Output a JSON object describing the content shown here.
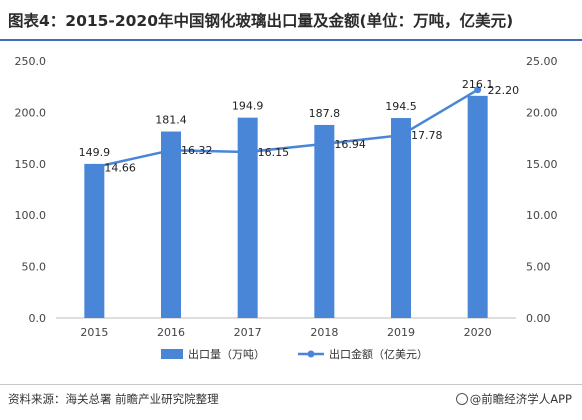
{
  "title": "图表4：2015-2020年中国钢化玻璃出口量及金额(单位：万吨，亿美元)",
  "source": "资料来源：海关总署 前瞻产业研究院整理",
  "brand": "@前瞻经济学人APP",
  "colors": {
    "bar": "#4a86d8",
    "line": "#4a86d8",
    "title_rule": "#3b6fb7"
  },
  "chart_data": {
    "type": "bar",
    "categories": [
      "2015",
      "2016",
      "2017",
      "2018",
      "2019",
      "2020"
    ],
    "series": [
      {
        "name": "出口量（万吨）",
        "type": "bar",
        "axis": "left",
        "values": [
          149.9,
          181.4,
          194.9,
          187.8,
          194.5,
          216.1
        ],
        "labels": [
          "149.9",
          "181.4",
          "194.9",
          "187.8",
          "194.5",
          "216.1"
        ]
      },
      {
        "name": "出口金额（亿美元）",
        "type": "line",
        "axis": "right",
        "values": [
          14.66,
          16.32,
          16.15,
          16.94,
          17.78,
          22.2
        ],
        "labels": [
          "14.66",
          "16.32",
          "16.15",
          "16.94",
          "17.78",
          "22.20"
        ]
      }
    ],
    "y_left": {
      "lim": [
        0,
        250
      ],
      "ticks": [
        "0.0",
        "50.0",
        "100.0",
        "150.0",
        "200.0",
        "250.0"
      ]
    },
    "y_right": {
      "lim": [
        0,
        25
      ],
      "ticks": [
        "0.00",
        "5.00",
        "10.00",
        "15.00",
        "20.00",
        "25.00"
      ]
    },
    "grid": false,
    "legend": "bottom"
  }
}
